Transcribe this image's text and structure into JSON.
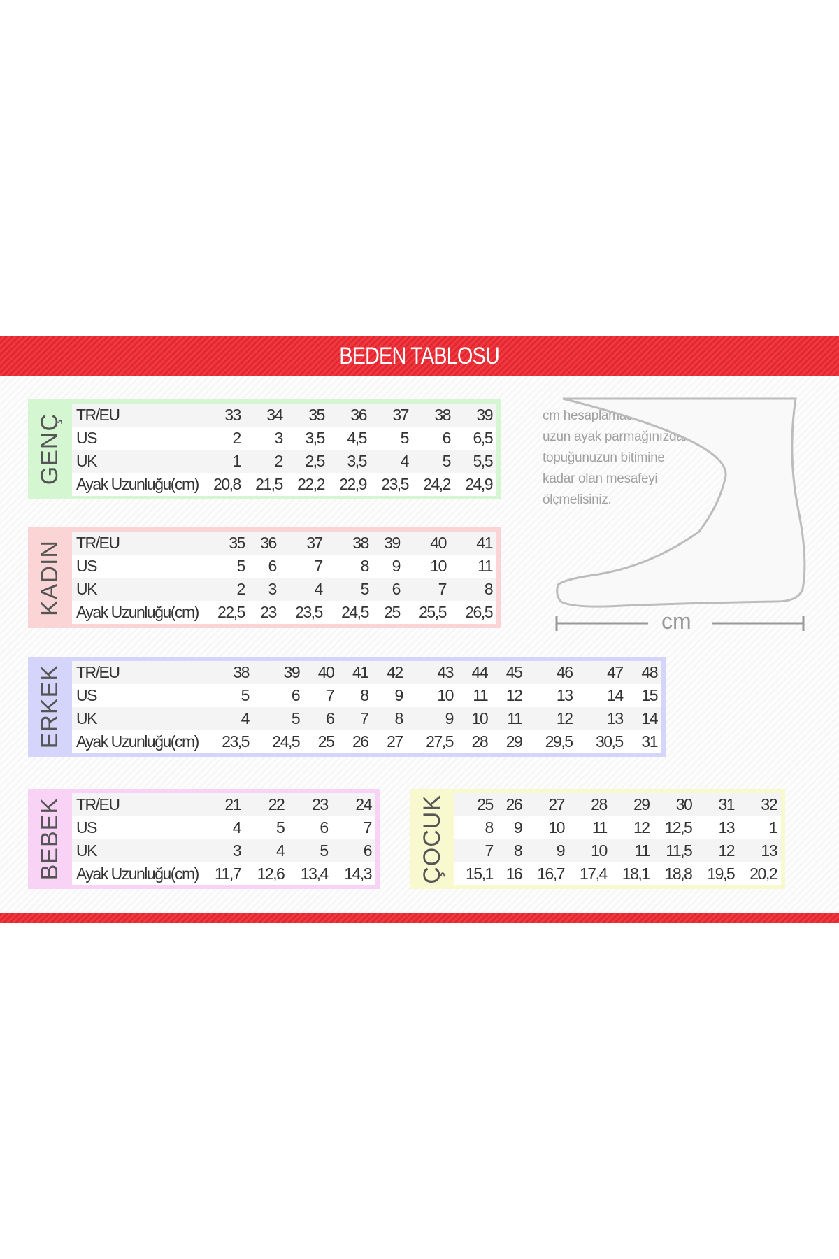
{
  "title": "BEDEN TABLOSU",
  "info_text": [
    "cm hesaplaması için en",
    "uzun ayak parmağınızdan",
    "topuğunuzun bitimine",
    "kadar olan mesafeyi",
    "ölçmelisiniz."
  ],
  "ruler_label": "cm",
  "colors": {
    "header": "#e8303a",
    "genc": "#d4f7d2",
    "kadin": "#fbd5d6",
    "erkek": "#d5d5fb",
    "bebek": "#f8d3f5",
    "cocuk": "#f9f9cf"
  },
  "tables": [
    {
      "id": "genc",
      "label": "GENÇ",
      "show_row_labels": true,
      "rows": [
        {
          "label": "TR/EU",
          "values": [
            "33",
            "34",
            "35",
            "36",
            "37",
            "38",
            "39"
          ]
        },
        {
          "label": "US",
          "values": [
            "2",
            "3",
            "3,5",
            "4,5",
            "5",
            "6",
            "6,5"
          ]
        },
        {
          "label": "UK",
          "values": [
            "1",
            "2",
            "2,5",
            "3,5",
            "4",
            "5",
            "5,5"
          ]
        },
        {
          "label": "Ayak Uzunluğu(cm)",
          "values": [
            "20,8",
            "21,5",
            "22,2",
            "22,9",
            "23,5",
            "24,2",
            "24,9"
          ]
        }
      ]
    },
    {
      "id": "kadin",
      "label": "KADIN",
      "show_row_labels": true,
      "rows": [
        {
          "label": "TR/EU",
          "values": [
            "35",
            "36",
            "37",
            "38",
            "39",
            "40",
            "41"
          ]
        },
        {
          "label": "US",
          "values": [
            "5",
            "6",
            "7",
            "8",
            "9",
            "10",
            "11"
          ]
        },
        {
          "label": "UK",
          "values": [
            "2",
            "3",
            "4",
            "5",
            "6",
            "7",
            "8"
          ]
        },
        {
          "label": "Ayak Uzunluğu(cm)",
          "values": [
            "22,5",
            "23",
            "23,5",
            "24,5",
            "25",
            "25,5",
            "26,5"
          ]
        }
      ]
    },
    {
      "id": "erkek",
      "label": "ERKEK",
      "show_row_labels": true,
      "rows": [
        {
          "label": "TR/EU",
          "values": [
            "38",
            "39",
            "40",
            "41",
            "42",
            "43",
            "44",
            "45",
            "46",
            "47",
            "48"
          ]
        },
        {
          "label": "US",
          "values": [
            "5",
            "6",
            "7",
            "8",
            "9",
            "10",
            "11",
            "12",
            "13",
            "14",
            "15"
          ]
        },
        {
          "label": "UK",
          "values": [
            "4",
            "5",
            "6",
            "7",
            "8",
            "9",
            "10",
            "11",
            "12",
            "13",
            "14"
          ]
        },
        {
          "label": "Ayak Uzunluğu(cm)",
          "values": [
            "23,5",
            "24,5",
            "25",
            "26",
            "27",
            "27,5",
            "28",
            "29",
            "29,5",
            "30,5",
            "31"
          ]
        }
      ]
    },
    {
      "id": "bebek",
      "label": "BEBEK",
      "show_row_labels": true,
      "rows": [
        {
          "label": "TR/EU",
          "values": [
            "21",
            "22",
            "23",
            "24"
          ]
        },
        {
          "label": "US",
          "values": [
            "4",
            "5",
            "6",
            "7"
          ]
        },
        {
          "label": "UK",
          "values": [
            "3",
            "4",
            "5",
            "6"
          ]
        },
        {
          "label": "Ayak Uzunluğu(cm)",
          "values": [
            "11,7",
            "12,6",
            "13,4",
            "14,3"
          ]
        }
      ]
    },
    {
      "id": "cocuk",
      "label": "ÇOCUK",
      "show_row_labels": false,
      "rows": [
        {
          "values": [
            "25",
            "26",
            "27",
            "28",
            "29",
            "30",
            "31",
            "32"
          ]
        },
        {
          "values": [
            "8",
            "9",
            "10",
            "11",
            "12",
            "12,5",
            "13",
            "1"
          ]
        },
        {
          "values": [
            "7",
            "8",
            "9",
            "10",
            "11",
            "11,5",
            "12",
            "13"
          ]
        },
        {
          "values": [
            "15,1",
            "16",
            "16,7",
            "17,4",
            "18,1",
            "18,8",
            "19,5",
            "20,2"
          ]
        }
      ]
    }
  ]
}
